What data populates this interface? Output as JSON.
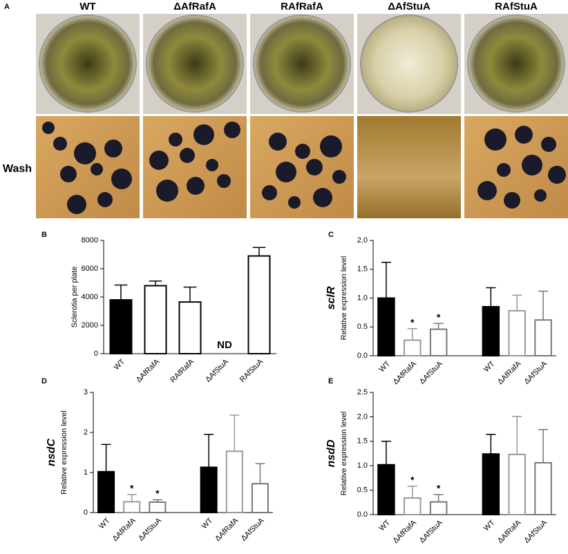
{
  "photo_panel": {
    "label": "A",
    "columns": [
      "WT",
      "ΔAfRafA",
      "RAfRafA",
      "ΔAfStuA",
      "RAfStuA"
    ],
    "row_label": "Wash"
  },
  "chart_data": [
    {
      "type": "bar",
      "panel": "B",
      "ylabel": "Sclerotia per plate",
      "categories": [
        "WT",
        "ΔAfRafA",
        "RAfRafA",
        "ΔAfStuA",
        "RAfStuA"
      ],
      "values": [
        3800,
        4800,
        3650,
        null,
        6900
      ],
      "errors": [
        1050,
        330,
        1050,
        null,
        600
      ],
      "annotations": [
        null,
        null,
        null,
        "ND",
        null
      ],
      "fills": [
        "#000000",
        "#ffffff",
        "#ffffff",
        "#ffffff",
        "#ffffff"
      ],
      "strokes": [
        "#000000",
        "#000000",
        "#000000",
        "#000000",
        "#000000"
      ],
      "ylim": [
        0,
        8000
      ],
      "yticks": [
        0,
        2000,
        4000,
        6000,
        8000
      ]
    },
    {
      "type": "bar",
      "panel": "C",
      "gene": "sclR",
      "ylabel": "Relative expression level",
      "categories": [
        "WT",
        "ΔAfRafA",
        "ΔAfStuA",
        "WT",
        "ΔAfRafA",
        "ΔAfStuA"
      ],
      "values": [
        1.0,
        0.27,
        0.46,
        0.85,
        0.78,
        0.62
      ],
      "errors": [
        0.62,
        0.2,
        0.1,
        0.33,
        0.27,
        0.5
      ],
      "annotations": [
        null,
        "*",
        "*",
        null,
        null,
        null
      ],
      "fills": [
        "#000000",
        "#ffffff",
        "#ffffff",
        "#000000",
        "#ffffff",
        "#ffffff"
      ],
      "strokes": [
        "#000000",
        "#999999",
        "#777777",
        "#000000",
        "#999999",
        "#777777"
      ],
      "ylim": [
        0,
        2.0
      ],
      "yticks": [
        {
          "value": 0,
          "label": "0.0"
        },
        0.5,
        {
          "value": 1,
          "label": "1.0"
        },
        1.5,
        {
          "value": 2,
          "label": "2.0"
        }
      ]
    },
    {
      "type": "bar",
      "panel": "D",
      "gene": "nsdC",
      "ylabel": "Relative expression level",
      "categories": [
        "WT",
        "ΔAfRafA",
        "ΔAfStuA",
        "WT",
        "ΔAfRafA",
        "ΔAfStuA"
      ],
      "values": [
        1.02,
        0.27,
        0.26,
        1.13,
        1.53,
        0.72
      ],
      "errors": [
        0.68,
        0.18,
        0.06,
        0.82,
        0.9,
        0.5
      ],
      "annotations": [
        null,
        "*",
        "*",
        null,
        null,
        null
      ],
      "fills": [
        "#000000",
        "#ffffff",
        "#ffffff",
        "#000000",
        "#ffffff",
        "#ffffff"
      ],
      "strokes": [
        "#000000",
        "#999999",
        "#777777",
        "#000000",
        "#999999",
        "#777777"
      ],
      "ylim": [
        0,
        3
      ],
      "yticks": [
        0,
        1,
        2,
        3
      ]
    },
    {
      "type": "bar",
      "panel": "E",
      "gene": "nsdD",
      "ylabel": "Relative expression level",
      "categories": [
        "WT",
        "ΔAfRafA",
        "ΔAfStuA",
        "WT",
        "ΔAfRafA",
        "ΔAfStuA"
      ],
      "values": [
        1.02,
        0.34,
        0.26,
        1.24,
        1.23,
        1.06
      ],
      "errors": [
        0.48,
        0.24,
        0.15,
        0.4,
        0.78,
        0.68
      ],
      "annotations": [
        null,
        "*",
        "*",
        null,
        null,
        null
      ],
      "fills": [
        "#000000",
        "#ffffff",
        "#ffffff",
        "#000000",
        "#ffffff",
        "#ffffff"
      ],
      "strokes": [
        "#000000",
        "#999999",
        "#777777",
        "#000000",
        "#999999",
        "#777777"
      ],
      "ylim": [
        0,
        2.5
      ],
      "yticks": [
        {
          "value": 0,
          "label": "0.0"
        },
        0.5,
        {
          "value": 1,
          "label": "1.0"
        },
        1.5,
        {
          "value": 2,
          "label": "2.0"
        },
        2.5
      ]
    }
  ]
}
